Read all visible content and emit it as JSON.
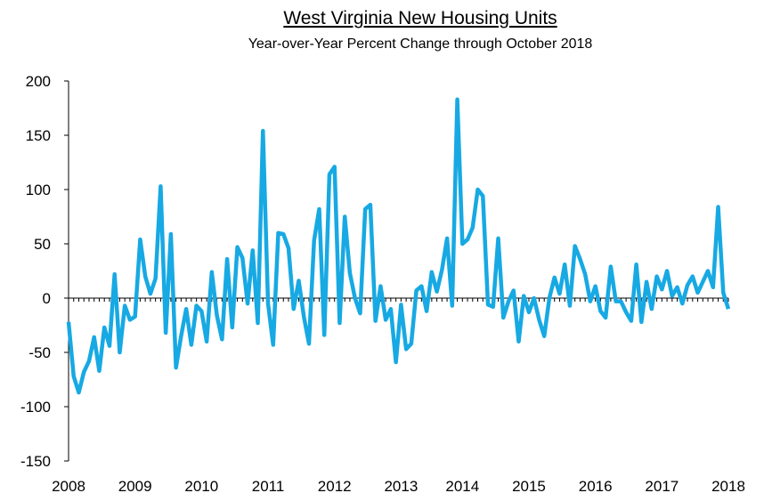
{
  "chart_data": {
    "type": "line",
    "title": "West Virginia New Housing Units",
    "subtitle": "Year-over-Year Percent Change through October 2018",
    "categories": [
      "2008",
      null,
      null,
      null,
      null,
      null,
      null,
      null,
      null,
      null,
      null,
      null,
      null,
      "2009",
      null,
      null,
      null,
      null,
      null,
      null,
      null,
      null,
      null,
      null,
      null,
      null,
      "2010",
      null,
      null,
      null,
      null,
      null,
      null,
      null,
      null,
      null,
      null,
      null,
      null,
      "2011",
      null,
      null,
      null,
      null,
      null,
      null,
      null,
      null,
      null,
      null,
      null,
      null,
      "2012",
      null,
      null,
      null,
      null,
      null,
      null,
      null,
      null,
      null,
      null,
      null,
      null,
      "2013",
      null,
      null,
      null,
      null,
      null,
      null,
      null,
      null,
      null,
      null,
      null,
      "2014",
      null,
      null,
      null,
      null,
      null,
      null,
      null,
      null,
      null,
      null,
      null,
      null,
      "2015",
      null,
      null,
      null,
      null,
      null,
      null,
      null,
      null,
      null,
      null,
      null,
      null,
      "2016",
      null,
      null,
      null,
      null,
      null,
      null,
      null,
      null,
      null,
      null,
      null,
      null,
      "2017",
      null,
      null,
      null,
      null,
      null,
      null,
      null,
      null,
      null,
      null,
      null,
      null,
      "2018"
    ],
    "series": [
      {
        "name": "YoY % change",
        "color": "#17a9e3",
        "values": [
          -22,
          -72,
          -87,
          -68,
          -58,
          -36,
          -67,
          -27,
          -44,
          22,
          -50,
          -7,
          -20,
          -17,
          54,
          20,
          4,
          18,
          103,
          -32,
          59,
          -64,
          -35,
          -10,
          -43,
          -7,
          -12,
          -40,
          24,
          -16,
          -38,
          36,
          -27,
          47,
          37,
          -5,
          44,
          -23,
          154,
          -5,
          -43,
          60,
          59,
          46,
          -10,
          16,
          -17,
          -42,
          53,
          82,
          -34,
          114,
          121,
          -23,
          75,
          23,
          0,
          -14,
          82,
          86,
          -21,
          11,
          -20,
          -10,
          -59,
          -6,
          -47,
          -42,
          7,
          11,
          -12,
          24,
          6,
          26,
          55,
          -7,
          183,
          50,
          54,
          65,
          100,
          94,
          -6,
          -8,
          55,
          -18,
          -3,
          7,
          -40,
          2,
          -13,
          0,
          -20,
          -35,
          0,
          19,
          4,
          31,
          -7,
          48,
          36,
          22,
          -3,
          11,
          -12,
          -18,
          29,
          -3,
          -3,
          -13,
          -21,
          31,
          -22,
          15,
          -10,
          20,
          8,
          25,
          2,
          10,
          -5,
          12,
          20,
          5,
          15,
          25,
          10,
          84,
          5,
          -10
        ]
      }
    ],
    "ylim": [
      -150,
      200
    ],
    "yticks": [
      -150,
      -100,
      -50,
      0,
      50,
      100,
      150,
      200
    ],
    "grid": false
  }
}
